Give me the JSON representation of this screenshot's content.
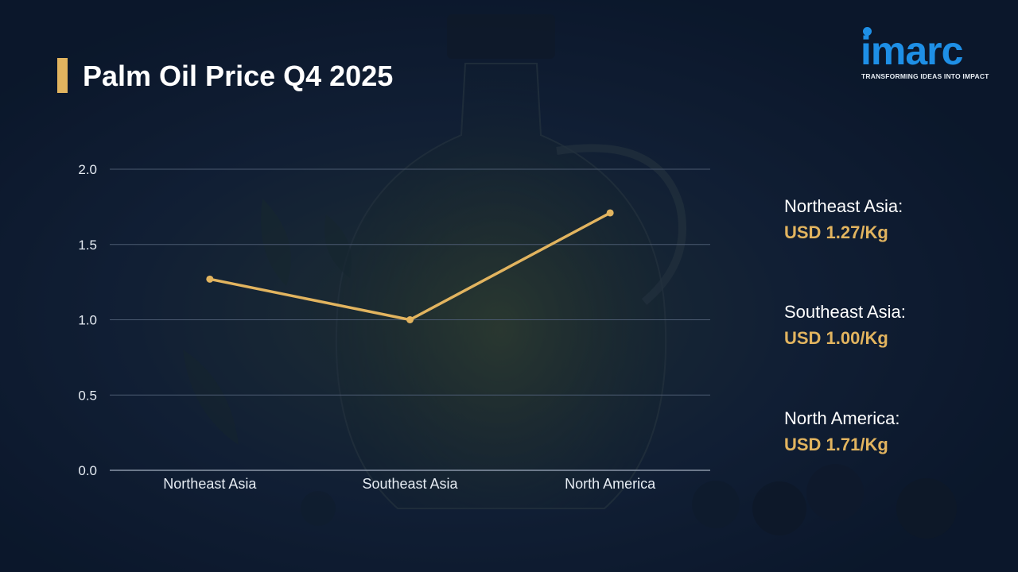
{
  "page": {
    "title": "Palm Oil Price Q4 2025"
  },
  "brand": {
    "name": "imarc",
    "tagline": "TRANSFORMING IDEAS INTO IMPACT"
  },
  "colors": {
    "accent": "#e2b45f",
    "brand_blue": "#1e8fe6",
    "gridline": "#4b5a70",
    "axis_text": "#e6ecf3"
  },
  "chart_data": {
    "type": "line",
    "title": "Palm Oil Price Q4 2025",
    "categories": [
      "Northeast Asia",
      "Southeast Asia",
      "North America"
    ],
    "series": [
      {
        "values": [
          1.27,
          1.0,
          1.71
        ]
      }
    ],
    "ylim": [
      0,
      2.0
    ],
    "yticks": [
      0.0,
      0.5,
      1.0,
      1.5,
      2.0
    ],
    "ytick_labels": [
      "0.0",
      "0.5",
      "1.0",
      "1.5",
      "2.0"
    ],
    "xlabel": "",
    "ylabel": "",
    "grid": true,
    "legend": "none"
  },
  "price_panel": [
    {
      "region": "Northeast Asia:",
      "price": "USD 1.27/Kg"
    },
    {
      "region": "Southeast Asia:",
      "price": "USD 1.00/Kg"
    },
    {
      "region": "North America:",
      "price": "USD 1.71/Kg"
    }
  ]
}
